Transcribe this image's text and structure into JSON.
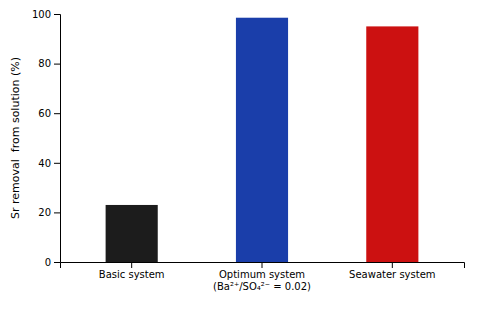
{
  "chart_data": {
    "type": "bar",
    "categories": [
      "Basic system",
      "Optimum system\n(Ba²⁺/SO₄²⁻ = 0.02)",
      "Seawater system"
    ],
    "values": [
      23,
      98.5,
      95
    ],
    "colors": [
      "#1c1c1c",
      "#1a3eaa",
      "#cc1111"
    ],
    "ylabel": "Sr removal  from solution (%)",
    "ylim": [
      0,
      100
    ],
    "yticks": [
      0,
      20,
      40,
      60,
      80,
      100
    ],
    "grid": false
  }
}
